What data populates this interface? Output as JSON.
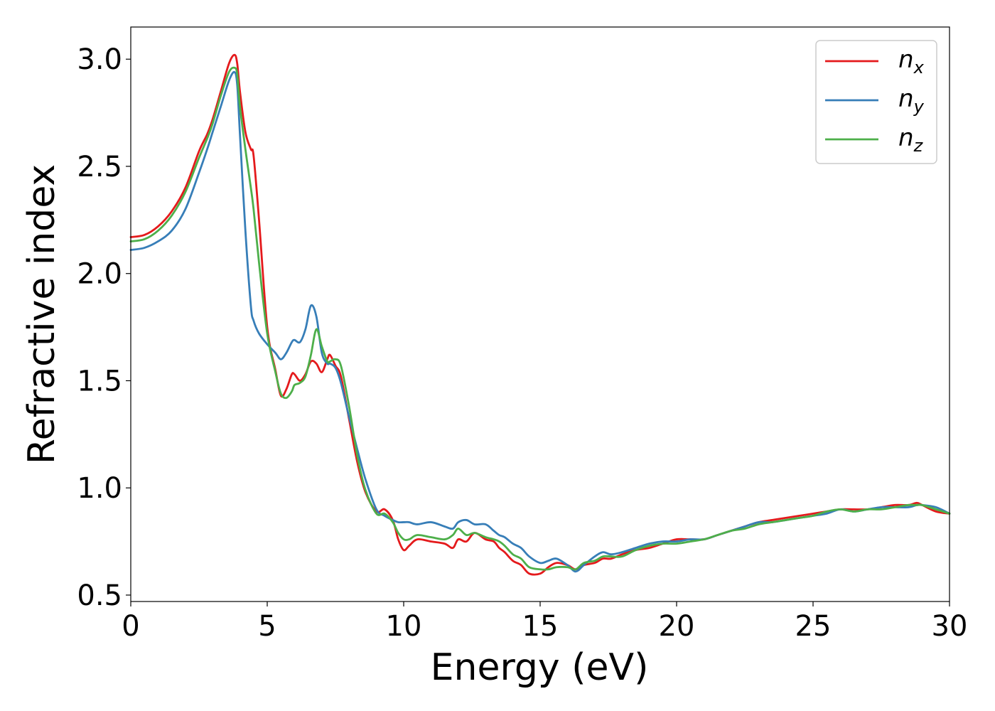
{
  "chart_data": {
    "type": "line",
    "title": "",
    "xlabel": "Energy (eV)",
    "ylabel": "Refractive index",
    "xlim": [
      0,
      30
    ],
    "ylim": [
      0.47,
      3.15
    ],
    "xticks": [
      0,
      5,
      10,
      15,
      20,
      25,
      30
    ],
    "yticks": [
      0.5,
      1.0,
      1.5,
      2.0,
      2.5,
      3.0
    ],
    "xtick_labels": [
      "0",
      "5",
      "10",
      "15",
      "20",
      "25",
      "30"
    ],
    "ytick_labels": [
      "0.5",
      "1.0",
      "1.5",
      "2.0",
      "2.5",
      "3.0"
    ],
    "grid": false,
    "legend_position": "top-right",
    "series": [
      {
        "name": "n_x",
        "label_main": "n",
        "label_sub": "x",
        "color": "#e41a1c",
        "x": [
          0,
          0.5,
          1,
          1.5,
          2,
          2.5,
          2.8,
          3.0,
          3.3,
          3.6,
          3.8,
          3.9,
          4.0,
          4.2,
          4.4,
          4.5,
          4.7,
          5.0,
          5.3,
          5.5,
          5.7,
          5.9,
          6.0,
          6.2,
          6.4,
          6.6,
          6.8,
          7.0,
          7.2,
          7.3,
          7.5,
          7.7,
          8.0,
          8.3,
          8.6,
          9.0,
          9.3,
          9.6,
          9.8,
          10.0,
          10.2,
          10.5,
          11.0,
          11.5,
          11.8,
          12.0,
          12.3,
          12.6,
          13.0,
          13.3,
          13.5,
          13.7,
          14.0,
          14.3,
          14.6,
          15.0,
          15.3,
          15.6,
          16.0,
          16.3,
          16.6,
          17.0,
          17.3,
          17.6,
          18.0,
          18.5,
          19.0,
          19.5,
          20.0,
          20.5,
          21.0,
          21.5,
          22.0,
          22.5,
          23.0,
          23.5,
          24.0,
          24.5,
          25.0,
          25.5,
          26.0,
          26.5,
          27.0,
          27.5,
          28.0,
          28.5,
          28.8,
          29.0,
          29.5,
          30.0
        ],
        "y": [
          2.17,
          2.18,
          2.22,
          2.29,
          2.4,
          2.57,
          2.65,
          2.72,
          2.85,
          2.98,
          3.02,
          2.98,
          2.85,
          2.66,
          2.58,
          2.55,
          2.25,
          1.75,
          1.55,
          1.43,
          1.46,
          1.53,
          1.53,
          1.5,
          1.53,
          1.59,
          1.58,
          1.54,
          1.6,
          1.62,
          1.57,
          1.52,
          1.32,
          1.12,
          0.98,
          0.89,
          0.9,
          0.85,
          0.76,
          0.71,
          0.73,
          0.76,
          0.75,
          0.74,
          0.72,
          0.76,
          0.75,
          0.79,
          0.76,
          0.75,
          0.72,
          0.7,
          0.66,
          0.64,
          0.6,
          0.6,
          0.63,
          0.65,
          0.64,
          0.62,
          0.64,
          0.65,
          0.67,
          0.67,
          0.69,
          0.71,
          0.72,
          0.74,
          0.76,
          0.76,
          0.76,
          0.78,
          0.8,
          0.82,
          0.84,
          0.85,
          0.86,
          0.87,
          0.88,
          0.89,
          0.9,
          0.9,
          0.9,
          0.91,
          0.92,
          0.92,
          0.93,
          0.92,
          0.89,
          0.88
        ]
      },
      {
        "name": "n_y",
        "label_main": "n",
        "label_sub": "y",
        "color": "#377eb8",
        "x": [
          0,
          0.5,
          1,
          1.5,
          2,
          2.5,
          2.8,
          3.0,
          3.3,
          3.6,
          3.8,
          3.9,
          4.0,
          4.2,
          4.4,
          4.5,
          4.7,
          5.0,
          5.3,
          5.5,
          5.7,
          5.9,
          6.0,
          6.2,
          6.4,
          6.6,
          6.8,
          7.0,
          7.2,
          7.3,
          7.5,
          7.7,
          8.0,
          8.3,
          8.6,
          9.0,
          9.3,
          9.6,
          9.8,
          10.0,
          10.2,
          10.5,
          11.0,
          11.5,
          11.8,
          12.0,
          12.3,
          12.6,
          13.0,
          13.3,
          13.5,
          13.7,
          14.0,
          14.3,
          14.6,
          15.0,
          15.3,
          15.6,
          16.0,
          16.3,
          16.6,
          17.0,
          17.3,
          17.6,
          18.0,
          18.5,
          19.0,
          19.5,
          20.0,
          20.5,
          21.0,
          21.5,
          22.0,
          22.5,
          23.0,
          23.5,
          24.0,
          24.5,
          25.0,
          25.5,
          26.0,
          26.5,
          27.0,
          27.5,
          28.0,
          28.5,
          28.8,
          29.0,
          29.5,
          30.0
        ],
        "y": [
          2.11,
          2.12,
          2.15,
          2.2,
          2.3,
          2.47,
          2.58,
          2.66,
          2.78,
          2.9,
          2.94,
          2.88,
          2.65,
          2.2,
          1.85,
          1.78,
          1.72,
          1.67,
          1.63,
          1.6,
          1.63,
          1.68,
          1.69,
          1.68,
          1.74,
          1.85,
          1.8,
          1.63,
          1.58,
          1.58,
          1.56,
          1.49,
          1.33,
          1.18,
          1.04,
          0.9,
          0.87,
          0.85,
          0.84,
          0.84,
          0.84,
          0.83,
          0.84,
          0.82,
          0.81,
          0.84,
          0.85,
          0.83,
          0.83,
          0.8,
          0.78,
          0.77,
          0.74,
          0.72,
          0.68,
          0.65,
          0.66,
          0.67,
          0.64,
          0.61,
          0.64,
          0.68,
          0.7,
          0.69,
          0.7,
          0.72,
          0.74,
          0.75,
          0.75,
          0.76,
          0.76,
          0.78,
          0.8,
          0.82,
          0.84,
          0.84,
          0.85,
          0.86,
          0.87,
          0.88,
          0.9,
          0.89,
          0.9,
          0.91,
          0.91,
          0.91,
          0.92,
          0.92,
          0.91,
          0.88
        ]
      },
      {
        "name": "n_z",
        "label_main": "n",
        "label_sub": "z",
        "color": "#4daf4a",
        "x": [
          0,
          0.5,
          1,
          1.5,
          2,
          2.5,
          2.8,
          3.0,
          3.3,
          3.6,
          3.8,
          3.9,
          4.0,
          4.2,
          4.4,
          4.5,
          4.7,
          5.0,
          5.3,
          5.5,
          5.7,
          5.9,
          6.0,
          6.2,
          6.4,
          6.6,
          6.8,
          7.0,
          7.2,
          7.3,
          7.5,
          7.7,
          8.0,
          8.3,
          8.6,
          9.0,
          9.3,
          9.6,
          9.8,
          10.0,
          10.2,
          10.5,
          11.0,
          11.5,
          11.8,
          12.0,
          12.3,
          12.6,
          13.0,
          13.3,
          13.5,
          13.7,
          14.0,
          14.3,
          14.6,
          15.0,
          15.3,
          15.6,
          16.0,
          16.3,
          16.6,
          17.0,
          17.3,
          17.6,
          18.0,
          18.5,
          19.0,
          19.5,
          20.0,
          20.5,
          21.0,
          21.5,
          22.0,
          22.5,
          23.0,
          23.5,
          24.0,
          24.5,
          25.0,
          25.5,
          26.0,
          26.5,
          27.0,
          27.5,
          28.0,
          28.5,
          28.8,
          29.0,
          29.5,
          30.0
        ],
        "y": [
          2.15,
          2.16,
          2.2,
          2.27,
          2.38,
          2.54,
          2.63,
          2.7,
          2.83,
          2.94,
          2.96,
          2.93,
          2.78,
          2.58,
          2.4,
          2.3,
          2.05,
          1.72,
          1.54,
          1.44,
          1.42,
          1.45,
          1.48,
          1.49,
          1.52,
          1.62,
          1.74,
          1.66,
          1.59,
          1.59,
          1.6,
          1.57,
          1.38,
          1.15,
          0.99,
          0.88,
          0.88,
          0.84,
          0.79,
          0.76,
          0.76,
          0.78,
          0.77,
          0.76,
          0.78,
          0.81,
          0.78,
          0.79,
          0.77,
          0.76,
          0.75,
          0.73,
          0.69,
          0.67,
          0.63,
          0.62,
          0.62,
          0.63,
          0.63,
          0.62,
          0.65,
          0.66,
          0.68,
          0.68,
          0.68,
          0.71,
          0.73,
          0.74,
          0.74,
          0.75,
          0.76,
          0.78,
          0.8,
          0.81,
          0.83,
          0.84,
          0.85,
          0.86,
          0.87,
          0.89,
          0.9,
          0.89,
          0.9,
          0.9,
          0.91,
          0.92,
          0.92,
          0.92,
          0.9,
          0.88
        ]
      }
    ]
  }
}
